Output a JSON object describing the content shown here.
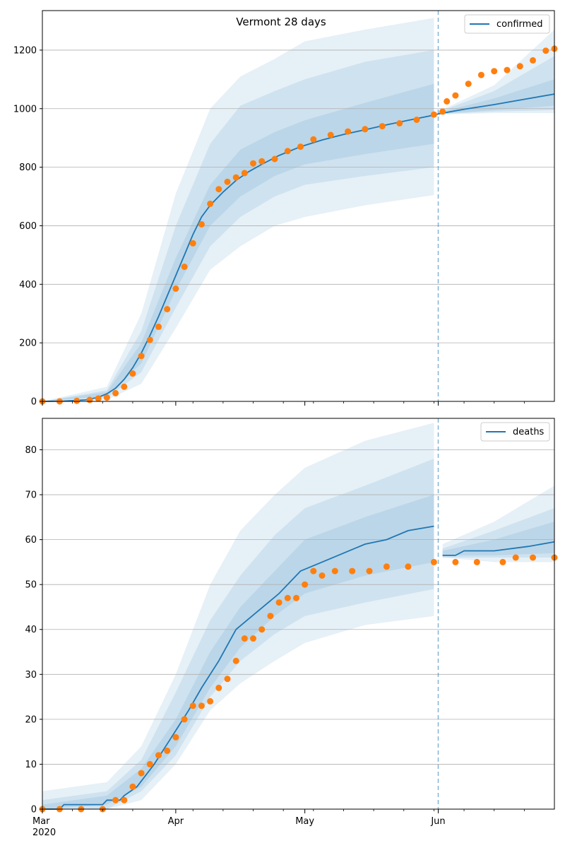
{
  "chart_data": [
    {
      "type": "line",
      "title": "Vermont 28 days",
      "legend": {
        "entries": [
          "confirmed"
        ],
        "placement": "top-right"
      },
      "colors": {
        "line": "#1f77b4",
        "observed": "#ff7f0e",
        "band": "#1f77b4"
      },
      "xlabel": "",
      "ylabel": "",
      "xlim": [
        "2020-03-01",
        "2020-06-28"
      ],
      "ylim": [
        0,
        1335
      ],
      "y_ticks": [
        0,
        200,
        400,
        600,
        800,
        1000,
        1200
      ],
      "grid": "horizontal",
      "forecast_start": "2020-06-01",
      "series": [
        {
          "name": "confirmed",
          "kind": "line",
          "x": [
            "2020-03-01",
            "2020-03-06",
            "2020-03-11",
            "2020-03-14",
            "2020-03-16",
            "2020-03-18",
            "2020-03-20",
            "2020-03-22",
            "2020-03-24",
            "2020-03-26",
            "2020-03-28",
            "2020-03-30",
            "2020-04-01",
            "2020-04-03",
            "2020-04-05",
            "2020-04-07",
            "2020-04-09",
            "2020-04-12",
            "2020-04-15",
            "2020-04-18",
            "2020-04-21",
            "2020-04-25",
            "2020-04-30",
            "2020-05-05",
            "2020-05-10",
            "2020-05-15",
            "2020-05-20",
            "2020-05-25",
            "2020-05-31",
            "2020-06-01",
            "2020-06-07",
            "2020-06-14",
            "2020-06-21",
            "2020-06-28"
          ],
          "y": [
            0,
            1,
            5,
            14,
            26,
            45,
            75,
            115,
            165,
            225,
            290,
            360,
            430,
            500,
            570,
            630,
            670,
            715,
            755,
            785,
            810,
            840,
            870,
            893,
            912,
            928,
            945,
            960,
            978,
            982,
            998,
            1014,
            1032,
            1050
          ]
        },
        {
          "name": "observed",
          "kind": "scatter",
          "x": [
            "2020-03-01",
            "2020-03-05",
            "2020-03-09",
            "2020-03-12",
            "2020-03-14",
            "2020-03-16",
            "2020-03-18",
            "2020-03-20",
            "2020-03-22",
            "2020-03-24",
            "2020-03-26",
            "2020-03-28",
            "2020-03-30",
            "2020-04-01",
            "2020-04-03",
            "2020-04-05",
            "2020-04-07",
            "2020-04-09",
            "2020-04-11",
            "2020-04-13",
            "2020-04-15",
            "2020-04-17",
            "2020-04-19",
            "2020-04-21",
            "2020-04-24",
            "2020-04-27",
            "2020-04-30",
            "2020-05-03",
            "2020-05-07",
            "2020-05-11",
            "2020-05-15",
            "2020-05-19",
            "2020-05-23",
            "2020-05-27",
            "2020-05-31",
            "2020-06-02",
            "2020-06-03",
            "2020-06-05",
            "2020-06-08",
            "2020-06-11",
            "2020-06-14",
            "2020-06-17",
            "2020-06-20",
            "2020-06-23",
            "2020-06-26",
            "2020-06-28"
          ],
          "y": [
            0,
            0,
            2,
            5,
            10,
            13,
            28,
            50,
            95,
            155,
            210,
            255,
            315,
            385,
            460,
            540,
            605,
            675,
            725,
            750,
            765,
            780,
            813,
            820,
            828,
            855,
            870,
            895,
            910,
            922,
            930,
            940,
            950,
            962,
            980,
            990,
            1025,
            1045,
            1085,
            1115,
            1128,
            1132,
            1145,
            1165,
            1198,
            1205
          ]
        }
      ],
      "uncertainty_bands": [
        {
          "label": "outer",
          "x": [
            "2020-03-01",
            "2020-03-16",
            "2020-03-24",
            "2020-04-01",
            "2020-04-09",
            "2020-04-16",
            "2020-04-24",
            "2020-05-01",
            "2020-05-15",
            "2020-05-31"
          ],
          "lower": [
            0,
            5,
            60,
            250,
            450,
            530,
            600,
            630,
            670,
            705
          ],
          "upper": [
            0,
            50,
            300,
            710,
            1000,
            1110,
            1170,
            1230,
            1270,
            1310
          ]
        },
        {
          "label": "middle",
          "x": [
            "2020-03-01",
            "2020-03-16",
            "2020-03-24",
            "2020-04-01",
            "2020-04-09",
            "2020-04-16",
            "2020-04-24",
            "2020-05-01",
            "2020-05-15",
            "2020-05-31"
          ],
          "lower": [
            0,
            12,
            100,
            320,
            530,
            630,
            700,
            740,
            770,
            800
          ],
          "upper": [
            0,
            38,
            240,
            600,
            880,
            1010,
            1060,
            1100,
            1160,
            1200
          ]
        },
        {
          "label": "inner",
          "x": [
            "2020-03-01",
            "2020-03-16",
            "2020-03-24",
            "2020-04-01",
            "2020-04-09",
            "2020-04-16",
            "2020-04-24",
            "2020-05-01",
            "2020-05-15",
            "2020-05-31"
          ],
          "lower": [
            0,
            18,
            130,
            380,
            600,
            700,
            770,
            810,
            845,
            880
          ],
          "upper": [
            0,
            32,
            200,
            490,
            740,
            860,
            920,
            960,
            1020,
            1085
          ]
        },
        {
          "label": "forecast-outer",
          "x": [
            "2020-06-01",
            "2020-06-14",
            "2020-06-28"
          ],
          "lower": [
            980,
            985,
            985
          ],
          "upper": [
            990,
            1080,
            1270
          ]
        },
        {
          "label": "forecast-middle",
          "x": [
            "2020-06-01",
            "2020-06-14",
            "2020-06-28"
          ],
          "lower": [
            981,
            990,
            995
          ],
          "upper": [
            988,
            1060,
            1180
          ]
        },
        {
          "label": "forecast-inner",
          "x": [
            "2020-06-01",
            "2020-06-14",
            "2020-06-28"
          ],
          "lower": [
            982,
            995,
            1010
          ],
          "upper": [
            986,
            1035,
            1100
          ]
        }
      ]
    },
    {
      "type": "line",
      "title": "",
      "legend": {
        "entries": [
          "deaths"
        ],
        "placement": "top-right"
      },
      "colors": {
        "line": "#1f77b4",
        "observed": "#ff7f0e",
        "band": "#1f77b4"
      },
      "xlabel": "",
      "ylabel": "",
      "xlim": [
        "2020-03-01",
        "2020-06-28"
      ],
      "ylim": [
        0,
        87
      ],
      "y_ticks": [
        0,
        10,
        20,
        30,
        40,
        50,
        60,
        70,
        80
      ],
      "x_ticks": [
        {
          "date": "2020-03-01",
          "label": "Mar",
          "sublabel": "2020"
        },
        {
          "date": "2020-04-01",
          "label": "Apr"
        },
        {
          "date": "2020-05-01",
          "label": "May"
        },
        {
          "date": "2020-06-01",
          "label": "Jun"
        }
      ],
      "grid": "horizontal",
      "forecast_start": "2020-06-01",
      "series": [
        {
          "name": "deaths",
          "kind": "line",
          "x": [
            "2020-03-01",
            "2020-03-05",
            "2020-03-06",
            "2020-03-15",
            "2020-03-16",
            "2020-03-19",
            "2020-03-20",
            "2020-03-23",
            "2020-03-27",
            "2020-03-31",
            "2020-04-04",
            "2020-04-07",
            "2020-04-11",
            "2020-04-15",
            "2020-04-20",
            "2020-04-25",
            "2020-04-30",
            "2020-05-05",
            "2020-05-10",
            "2020-05-15",
            "2020-05-20",
            "2020-05-25",
            "2020-05-31"
          ],
          "y": [
            0,
            0,
            1,
            1,
            2,
            2,
            3,
            5,
            10,
            16,
            22,
            27,
            33,
            40,
            44,
            48,
            53,
            55,
            57,
            59,
            60,
            62,
            63
          ]
        },
        {
          "name": "deaths-forecast",
          "kind": "line",
          "x": [
            "2020-06-02",
            "2020-06-05",
            "2020-06-07",
            "2020-06-14",
            "2020-06-22",
            "2020-06-28"
          ],
          "y": [
            56.5,
            56.5,
            57.5,
            57.5,
            58.5,
            59.5
          ]
        },
        {
          "name": "observed",
          "kind": "scatter",
          "x": [
            "2020-03-01",
            "2020-03-05",
            "2020-03-10",
            "2020-03-15",
            "2020-03-18",
            "2020-03-20",
            "2020-03-22",
            "2020-03-24",
            "2020-03-26",
            "2020-03-28",
            "2020-03-30",
            "2020-04-01",
            "2020-04-03",
            "2020-04-05",
            "2020-04-07",
            "2020-04-09",
            "2020-04-11",
            "2020-04-13",
            "2020-04-15",
            "2020-04-17",
            "2020-04-19",
            "2020-04-21",
            "2020-04-23",
            "2020-04-25",
            "2020-04-27",
            "2020-04-29",
            "2020-05-01",
            "2020-05-03",
            "2020-05-05",
            "2020-05-08",
            "2020-05-12",
            "2020-05-16",
            "2020-05-20",
            "2020-05-25",
            "2020-05-31",
            "2020-06-05",
            "2020-06-10",
            "2020-06-16",
            "2020-06-19",
            "2020-06-23",
            "2020-06-28"
          ],
          "y": [
            0,
            0,
            0,
            0,
            2,
            2,
            5,
            8,
            10,
            12,
            13,
            16,
            20,
            23,
            23,
            24,
            27,
            29,
            33,
            38,
            38,
            40,
            43,
            46,
            47,
            47,
            50,
            53,
            52,
            53,
            53,
            53,
            54,
            54,
            55,
            55,
            55,
            55,
            56,
            56,
            56
          ]
        }
      ],
      "uncertainty_bands": [
        {
          "label": "outer",
          "x": [
            "2020-03-01",
            "2020-03-16",
            "2020-03-24",
            "2020-04-01",
            "2020-04-09",
            "2020-04-16",
            "2020-04-24",
            "2020-05-01",
            "2020-05-15",
            "2020-05-31"
          ],
          "lower": [
            0,
            0,
            2,
            10,
            22,
            28,
            33,
            37,
            41,
            43
          ],
          "upper": [
            4,
            6,
            14,
            30,
            50,
            62,
            70,
            76,
            82,
            86
          ]
        },
        {
          "label": "middle",
          "x": [
            "2020-03-01",
            "2020-03-16",
            "2020-03-24",
            "2020-04-01",
            "2020-04-09",
            "2020-04-16",
            "2020-04-24",
            "2020-05-01",
            "2020-05-15",
            "2020-05-31"
          ],
          "lower": [
            0,
            0,
            4,
            12,
            25,
            33,
            39,
            43,
            46,
            49
          ],
          "upper": [
            2,
            4,
            11,
            26,
            42,
            52,
            61,
            67,
            72,
            78
          ]
        },
        {
          "label": "inner",
          "x": [
            "2020-03-01",
            "2020-03-16",
            "2020-03-24",
            "2020-04-01",
            "2020-04-09",
            "2020-04-16",
            "2020-04-24",
            "2020-05-01",
            "2020-05-15",
            "2020-05-31"
          ],
          "lower": [
            0,
            1,
            5,
            14,
            27,
            36,
            43,
            48,
            52,
            55
          ],
          "upper": [
            1,
            3,
            9,
            20,
            35,
            45,
            53,
            60,
            65,
            70
          ]
        },
        {
          "label": "forecast-outer",
          "x": [
            "2020-06-02",
            "2020-06-14",
            "2020-06-28"
          ],
          "lower": [
            56,
            55,
            55
          ],
          "upper": [
            59,
            64,
            72
          ]
        },
        {
          "label": "forecast-middle",
          "x": [
            "2020-06-02",
            "2020-06-14",
            "2020-06-28"
          ],
          "lower": [
            56,
            56,
            56
          ],
          "upper": [
            58,
            62,
            67
          ]
        },
        {
          "label": "forecast-inner",
          "x": [
            "2020-06-02",
            "2020-06-14",
            "2020-06-28"
          ],
          "lower": [
            56.5,
            56.5,
            57
          ],
          "upper": [
            57.5,
            60,
            64
          ]
        }
      ]
    }
  ]
}
